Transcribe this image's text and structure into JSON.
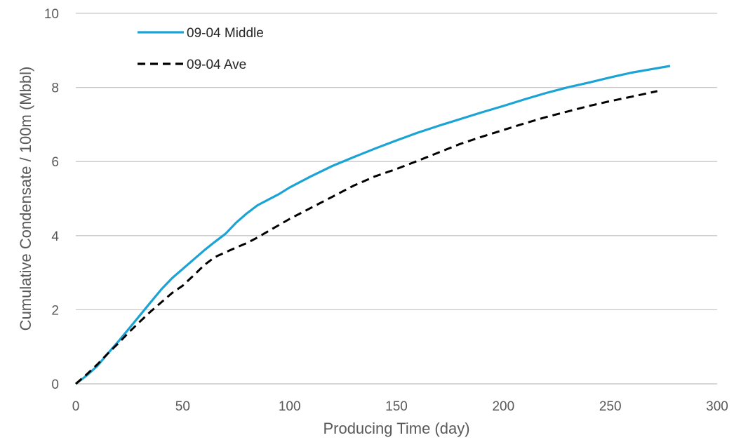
{
  "chart_data": {
    "type": "line",
    "title": "",
    "xlabel": "Producing Time (day)",
    "ylabel": "Cumulative Condensate / 100m (Mbbl)",
    "xlim": [
      0,
      300
    ],
    "ylim": [
      0,
      10
    ],
    "x_ticks": [
      0,
      50,
      100,
      150,
      200,
      250,
      300
    ],
    "y_ticks": [
      0,
      2,
      4,
      6,
      8,
      10
    ],
    "grid": "horizontal",
    "legend_position": "top-left",
    "series": [
      {
        "name": "09-04 Middle",
        "color": "#1ba3d6",
        "style": "solid",
        "x": [
          0,
          5,
          10,
          15,
          20,
          25,
          30,
          35,
          40,
          45,
          50,
          55,
          60,
          65,
          70,
          75,
          80,
          85,
          90,
          95,
          100,
          110,
          120,
          130,
          140,
          150,
          160,
          170,
          180,
          190,
          200,
          210,
          220,
          230,
          240,
          250,
          260,
          270,
          278
        ],
        "y": [
          0,
          0.22,
          0.48,
          0.82,
          1.15,
          1.5,
          1.85,
          2.2,
          2.55,
          2.85,
          3.1,
          3.35,
          3.6,
          3.83,
          4.05,
          4.35,
          4.6,
          4.82,
          4.97,
          5.12,
          5.3,
          5.6,
          5.88,
          6.12,
          6.35,
          6.57,
          6.78,
          6.97,
          7.15,
          7.33,
          7.5,
          7.68,
          7.85,
          8.0,
          8.13,
          8.27,
          8.4,
          8.5,
          8.58
        ]
      },
      {
        "name": "09-04 Ave",
        "color": "#000000",
        "style": "dashed",
        "x": [
          0,
          5,
          10,
          15,
          20,
          25,
          30,
          35,
          40,
          45,
          50,
          55,
          60,
          65,
          70,
          75,
          80,
          85,
          90,
          100,
          110,
          120,
          130,
          140,
          150,
          160,
          170,
          180,
          190,
          200,
          210,
          220,
          230,
          240,
          250,
          260,
          272
        ],
        "y": [
          0,
          0.25,
          0.52,
          0.82,
          1.1,
          1.4,
          1.68,
          1.95,
          2.2,
          2.45,
          2.65,
          2.92,
          3.2,
          3.42,
          3.55,
          3.68,
          3.8,
          3.95,
          4.12,
          4.45,
          4.75,
          5.05,
          5.35,
          5.6,
          5.8,
          6.02,
          6.25,
          6.48,
          6.67,
          6.85,
          7.03,
          7.2,
          7.35,
          7.5,
          7.63,
          7.75,
          7.9
        ]
      }
    ]
  }
}
